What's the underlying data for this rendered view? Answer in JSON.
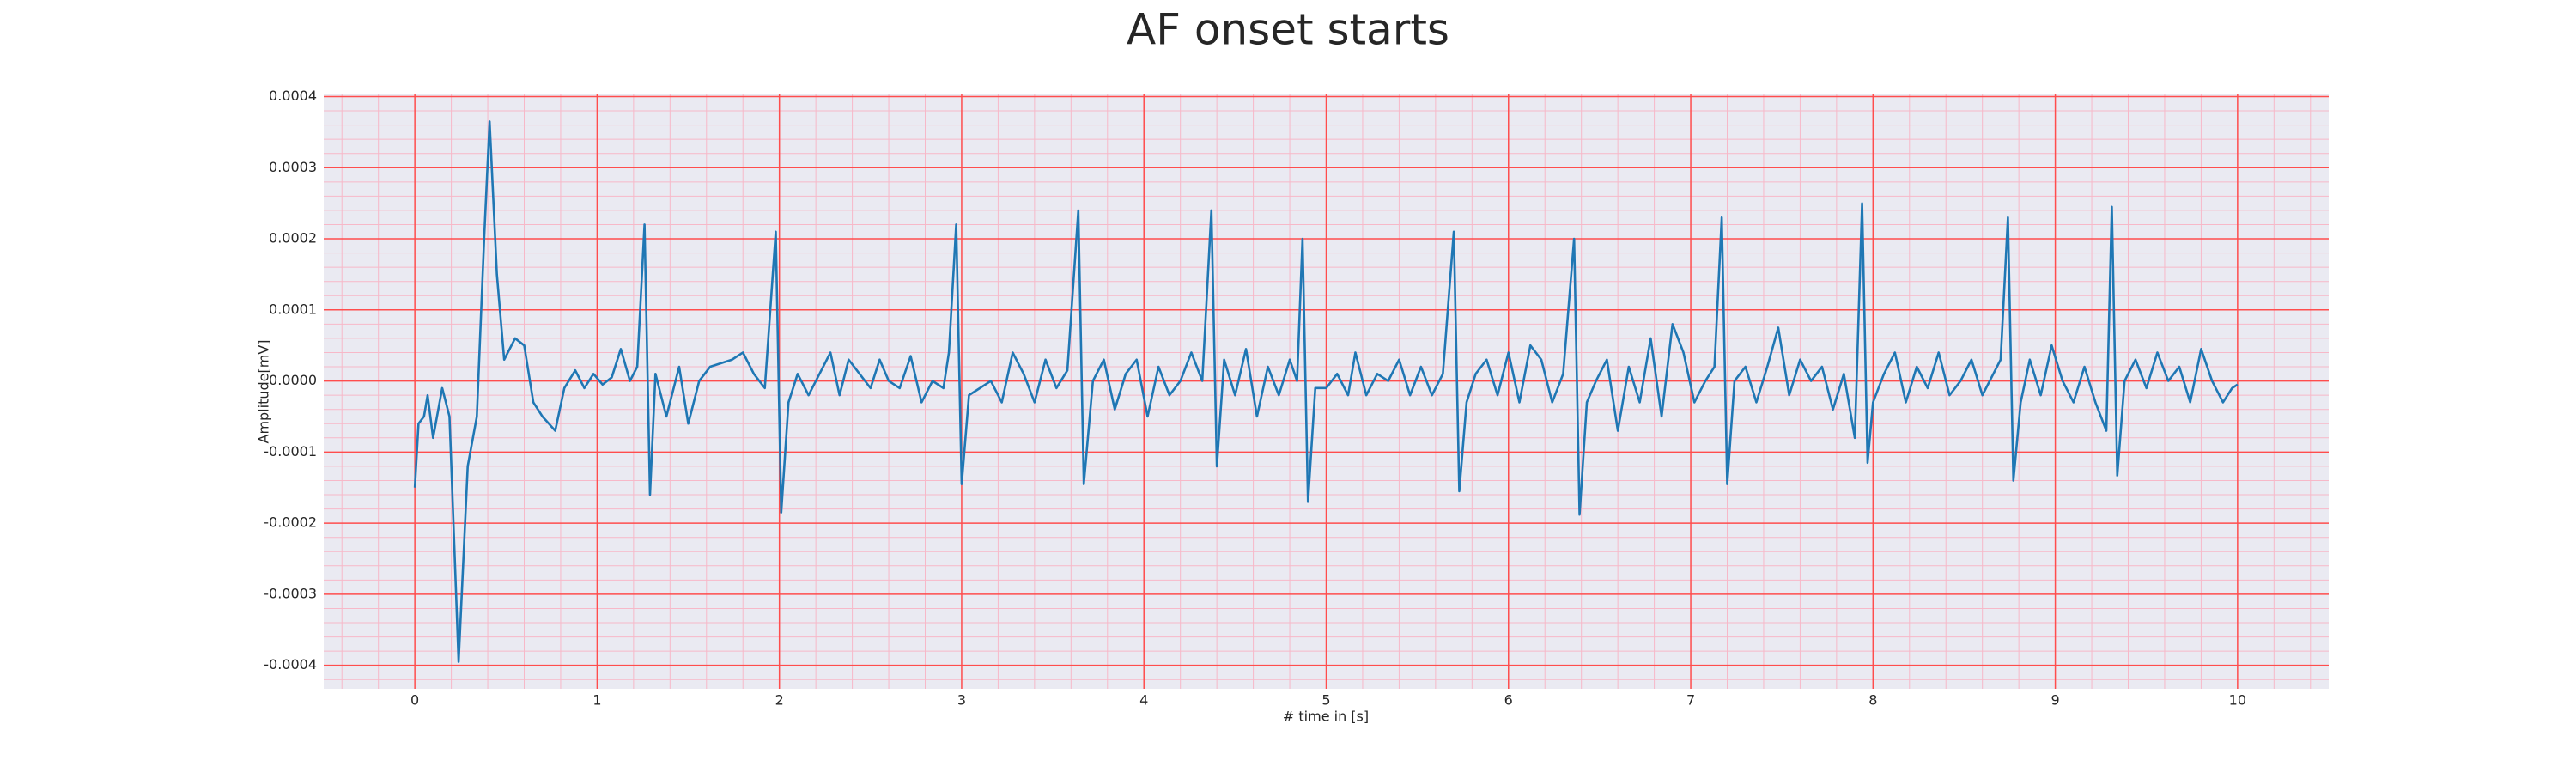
{
  "chart_data": {
    "type": "line",
    "title": "AF onset starts",
    "x_label": "# time in [s]",
    "y_label": "Amplitude[mV]",
    "xlim": [
      -0.5,
      10.5
    ],
    "ylim": [
      -0.000433,
      0.000403
    ],
    "xticks": [
      0,
      1,
      2,
      3,
      4,
      5,
      6,
      7,
      8,
      9,
      10
    ],
    "yticks": [
      {
        "value": -0.0004,
        "label": "-0.0004"
      },
      {
        "value": -0.0003,
        "label": "-0.0003"
      },
      {
        "value": -0.0002,
        "label": "-0.0002"
      },
      {
        "value": -0.0001,
        "label": "-0.0001"
      },
      {
        "value": 0,
        "label": "0.0000"
      },
      {
        "value": 0.0001,
        "label": "0.0001"
      },
      {
        "value": 0.0002,
        "label": "0.0002"
      },
      {
        "value": 0.0003,
        "label": "0.0003"
      },
      {
        "value": 0.0004,
        "label": "0.0004"
      }
    ],
    "grid": true,
    "minor_grid": true,
    "background": "#eaeaf2",
    "grid_color": "#ff4d4d",
    "minor_grid_color": "#f7b8c8",
    "series": [
      {
        "color": "#1f77b4",
        "x": [
          0,
          0.02,
          0.05,
          0.07,
          0.1,
          0.15,
          0.19,
          0.24,
          0.29,
          0.34,
          0.38,
          0.41,
          0.45,
          0.49,
          0.55,
          0.6,
          0.65,
          0.7,
          0.77,
          0.82,
          0.88,
          0.93,
          0.98,
          1.03,
          1.08,
          1.13,
          1.18,
          1.22,
          1.26,
          1.29,
          1.32,
          1.38,
          1.45,
          1.5,
          1.56,
          1.62,
          1.68,
          1.74,
          1.8,
          1.86,
          1.92,
          1.98,
          2.01,
          2.05,
          2.1,
          2.16,
          2.22,
          2.28,
          2.33,
          2.38,
          2.44,
          2.5,
          2.55,
          2.6,
          2.66,
          2.72,
          2.78,
          2.84,
          2.9,
          2.93,
          2.97,
          3.0,
          3.04,
          3.1,
          3.16,
          3.22,
          3.28,
          3.34,
          3.4,
          3.46,
          3.52,
          3.58,
          3.64,
          3.67,
          3.72,
          3.78,
          3.84,
          3.9,
          3.96,
          4.02,
          4.08,
          4.14,
          4.2,
          4.26,
          4.32,
          4.37,
          4.4,
          4.44,
          4.5,
          4.56,
          4.62,
          4.68,
          4.74,
          4.8,
          4.84,
          4.87,
          4.9,
          4.94,
          5.0,
          5.06,
          5.12,
          5.16,
          5.22,
          5.28,
          5.34,
          5.4,
          5.46,
          5.52,
          5.58,
          5.64,
          5.7,
          5.73,
          5.77,
          5.82,
          5.88,
          5.94,
          6.0,
          6.06,
          6.12,
          6.18,
          6.24,
          6.3,
          6.36,
          6.39,
          6.43,
          6.48,
          6.54,
          6.6,
          6.66,
          6.72,
          6.78,
          6.84,
          6.9,
          6.96,
          7.02,
          7.08,
          7.13,
          7.17,
          7.2,
          7.24,
          7.3,
          7.36,
          7.42,
          7.48,
          7.54,
          7.6,
          7.66,
          7.72,
          7.78,
          7.84,
          7.9,
          7.94,
          7.97,
          8.0,
          8.06,
          8.12,
          8.18,
          8.24,
          8.3,
          8.36,
          8.42,
          8.48,
          8.54,
          8.6,
          8.66,
          8.7,
          8.74,
          8.77,
          8.81,
          8.86,
          8.92,
          8.98,
          9.04,
          9.1,
          9.16,
          9.22,
          9.28,
          9.31,
          9.34,
          9.38,
          9.44,
          9.5,
          9.56,
          9.62,
          9.68,
          9.74,
          9.8,
          9.86,
          9.92,
          9.97,
          10.0
        ],
        "values": [
          -0.00015,
          -6e-05,
          -5e-05,
          -2e-05,
          -8e-05,
          -1e-05,
          -5e-05,
          -0.000395,
          -0.00012,
          -5e-05,
          0.0002,
          0.000365,
          0.00015,
          3e-05,
          6e-05,
          5e-05,
          -3e-05,
          -5e-05,
          -7e-05,
          -1e-05,
          1.5e-05,
          -1e-05,
          1e-05,
          -5e-06,
          5e-06,
          4.5e-05,
          0,
          2e-05,
          0.00022,
          -0.00016,
          1e-05,
          -5e-05,
          2e-05,
          -6e-05,
          0,
          2e-05,
          2.5e-05,
          3e-05,
          4e-05,
          1e-05,
          -1e-05,
          0.00021,
          -0.000185,
          -3e-05,
          1e-05,
          -2e-05,
          1e-05,
          4e-05,
          -2e-05,
          3e-05,
          1e-05,
          -1e-05,
          3e-05,
          0,
          -1e-05,
          3.5e-05,
          -3e-05,
          0,
          -1e-05,
          4e-05,
          0.00022,
          -0.000145,
          -2e-05,
          -1e-05,
          0,
          -3e-05,
          4e-05,
          1e-05,
          -3e-05,
          3e-05,
          -1e-05,
          1.5e-05,
          0.00024,
          -0.000145,
          0,
          3e-05,
          -4e-05,
          1e-05,
          3e-05,
          -5e-05,
          2e-05,
          -2e-05,
          0,
          4e-05,
          0,
          0.00024,
          -0.00012,
          3e-05,
          -2e-05,
          4.5e-05,
          -5e-05,
          2e-05,
          -2e-05,
          3e-05,
          0,
          0.0002,
          -0.00017,
          -1e-05,
          -1e-05,
          1e-05,
          -2e-05,
          4e-05,
          -2e-05,
          1e-05,
          0,
          3e-05,
          -2e-05,
          2e-05,
          -2e-05,
          1e-05,
          0.00021,
          -0.000155,
          -3e-05,
          1e-05,
          3e-05,
          -2e-05,
          4e-05,
          -3e-05,
          5e-05,
          3e-05,
          -3e-05,
          1e-05,
          0.0002,
          -0.000188,
          -3e-05,
          0,
          3e-05,
          -7e-05,
          2e-05,
          -3e-05,
          6e-05,
          -5e-05,
          8e-05,
          4e-05,
          -3e-05,
          0,
          2e-05,
          0.00023,
          -0.000145,
          0,
          2e-05,
          -3e-05,
          2e-05,
          7.5e-05,
          -2e-05,
          3e-05,
          0,
          2e-05,
          -4e-05,
          1e-05,
          -8e-05,
          0.00025,
          -0.000115,
          -3e-05,
          1e-05,
          4e-05,
          -3e-05,
          2e-05,
          -1e-05,
          4e-05,
          -2e-05,
          0,
          3e-05,
          -2e-05,
          1e-05,
          3e-05,
          0.00023,
          -0.00014,
          -3e-05,
          3e-05,
          -2e-05,
          5e-05,
          0,
          -3e-05,
          2e-05,
          -3e-05,
          -7e-05,
          0.000245,
          -0.000133,
          0,
          3e-05,
          -1e-05,
          4e-05,
          0,
          2e-05,
          -3e-05,
          4.5e-05,
          0,
          -3e-05,
          -1e-05,
          -5e-06
        ]
      }
    ]
  }
}
